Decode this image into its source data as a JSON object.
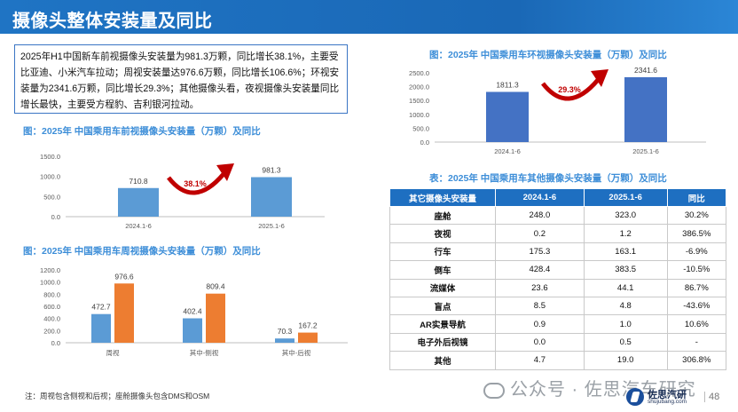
{
  "page": {
    "title": "摄像头整体安装量及同比",
    "summary": "2025年H1中国新车前视摄像头安装量为981.3万颗，同比增长38.1%，主要受比亚迪、小米汽车拉动；周视安装量达976.6万颗，同比增长106.6%；环视安装量为2341.6万颗，同比增长29.3%；其他摄像头看，夜视摄像头安装量同比增长最快，主要受方程豹、吉利银河拉动。",
    "note": "注：周视包含侧视和后视；座舱摄像头包含DMS和OSM",
    "watermark": "公众号 · 佐思汽车研究",
    "logo_name": "佐思汽研",
    "logo_url": "shujubang.com",
    "page_number": "48"
  },
  "colors": {
    "bar_blue": "#5b9bd5",
    "bar_dark_blue": "#4472c4",
    "bar_orange": "#ed7d31",
    "arrow_red": "#c00000",
    "header_blue": "#1e6fc1"
  },
  "chart_data": [
    {
      "type": "bar",
      "title": "图：2025年 中国乘用车前视摄像头安装量（万颗）及同比",
      "categories": [
        "2024.1-6",
        "2025.1-6"
      ],
      "values": [
        710.8,
        981.3
      ],
      "value_labels": [
        "710.8",
        "981.3"
      ],
      "yticks": [
        "0.0",
        "500.0",
        "1000.0",
        "1500.0"
      ],
      "ylim": [
        0,
        1500
      ],
      "growth_label": "38.1%",
      "grid": false
    },
    {
      "type": "bar",
      "title": "图：2025年 中国乘用车周视摄像头安装量（万颗）及同比",
      "categories": [
        "周视",
        "其中-侧视",
        "其中-后视"
      ],
      "series": [
        {
          "values": [
            472.7,
            402.4,
            70.3
          ],
          "labels": [
            "472.7",
            "402.4",
            "70.3"
          ]
        },
        {
          "values": [
            976.6,
            809.4,
            167.2
          ],
          "labels": [
            "976.6",
            "809.4",
            "167.2"
          ]
        }
      ],
      "yticks": [
        "0.0",
        "200.0",
        "400.0",
        "600.0",
        "800.0",
        "1000.0",
        "1200.0"
      ],
      "ylim": [
        0,
        1200
      ],
      "grid": false
    },
    {
      "type": "bar",
      "title": "图：2025年 中国乘用车环视摄像头安装量（万颗）及同比",
      "categories": [
        "2024.1-6",
        "2025.1-6"
      ],
      "values": [
        1811.3,
        2341.6
      ],
      "value_labels": [
        "1811.3",
        "2341.6"
      ],
      "yticks": [
        "0.0",
        "500.0",
        "1000.0",
        "1500.0",
        "2000.0",
        "2500.0"
      ],
      "ylim": [
        0,
        2500
      ],
      "growth_label": "29.3%",
      "grid": false
    },
    {
      "type": "table",
      "title": "表：2025年 中国乘用车其他摄像头安装量（万颗）及同比",
      "headers": [
        "其它摄像头安装量",
        "2024.1-6",
        "2025.1-6",
        "同比"
      ],
      "rows": [
        [
          "座舱",
          "248.0",
          "323.0",
          "30.2%"
        ],
        [
          "夜视",
          "0.2",
          "1.2",
          "386.5%"
        ],
        [
          "行车",
          "175.3",
          "163.1",
          "-6.9%"
        ],
        [
          "倒车",
          "428.4",
          "383.5",
          "-10.5%"
        ],
        [
          "流媒体",
          "23.6",
          "44.1",
          "86.7%"
        ],
        [
          "盲点",
          "8.5",
          "4.8",
          "-43.6%"
        ],
        [
          "AR实景导航",
          "0.9",
          "1.0",
          "10.6%"
        ],
        [
          "电子外后视镜",
          "0.0",
          "0.5",
          "-"
        ],
        [
          "其他",
          "4.7",
          "19.0",
          "306.8%"
        ]
      ]
    }
  ]
}
